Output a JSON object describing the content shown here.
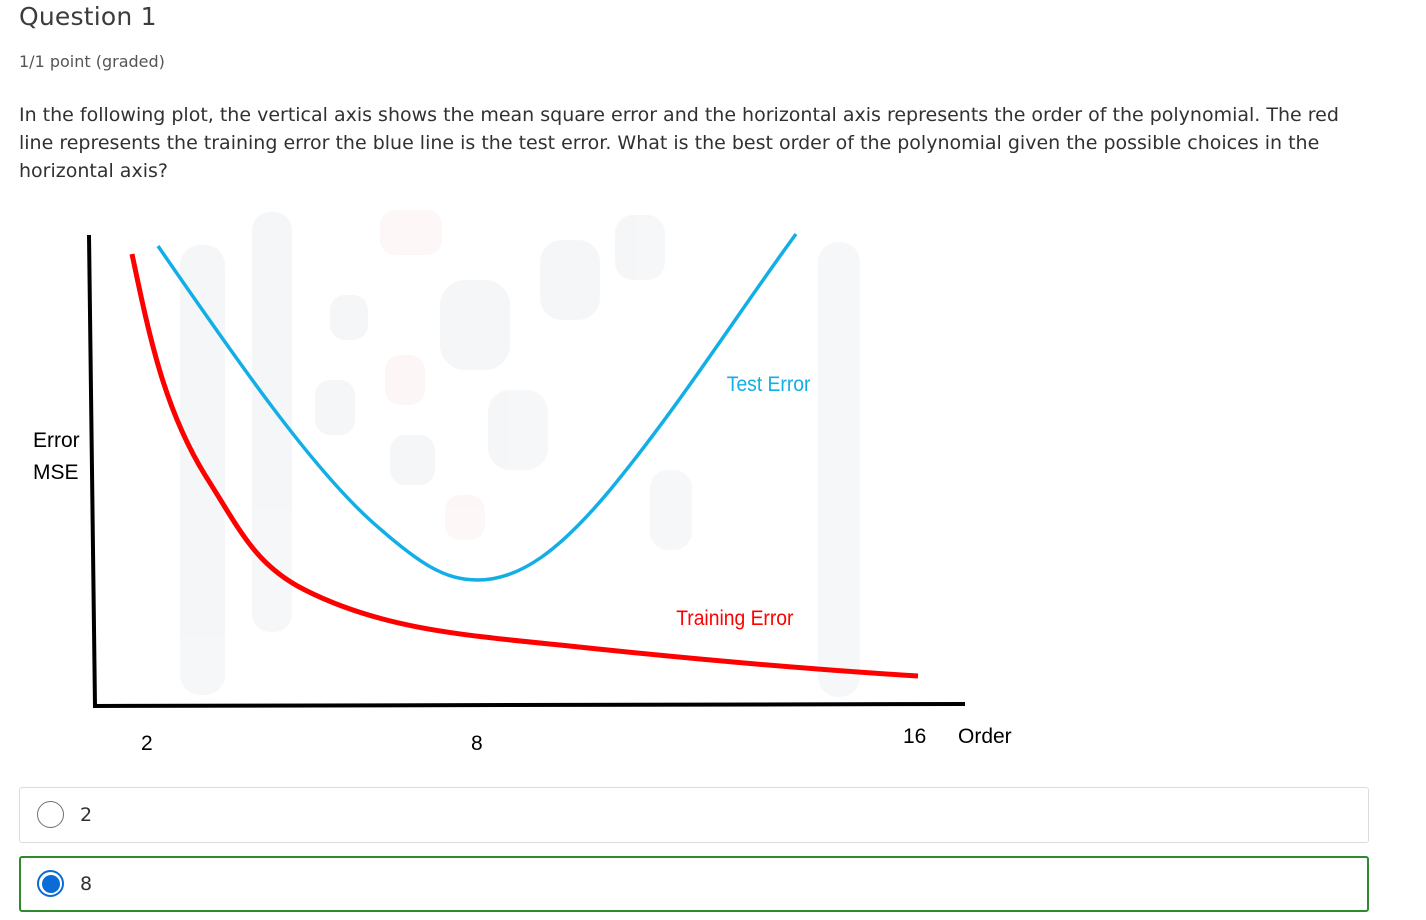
{
  "question": {
    "title": "Question 1",
    "points": "1/1 point (graded)",
    "text": "In the following plot, the vertical axis shows the mean square error and the horizontal axis represents the order of the polynomial. The red line represents the training error the blue line is the test error. What is the best order of the polynomial given the possible choices in the horizontal axis?"
  },
  "chart_data": {
    "type": "line",
    "xlabel": "Order",
    "ylabel_lines": [
      "Error",
      "MSE"
    ],
    "x_ticks": [
      "2",
      "8",
      "16"
    ],
    "series": [
      {
        "name": "Test Error",
        "color": "#12aee6",
        "shape": "U-shaped curve with minimum near order 8",
        "values_relative": [
          {
            "x": 1.3,
            "y": 0.98
          },
          {
            "x": 4.0,
            "y": 0.6
          },
          {
            "x": 6.0,
            "y": 0.35
          },
          {
            "x": 8.0,
            "y": 0.27
          },
          {
            "x": 10.0,
            "y": 0.42
          },
          {
            "x": 12.0,
            "y": 0.68
          },
          {
            "x": 13.0,
            "y": 0.99
          }
        ]
      },
      {
        "name": "Training Error",
        "color": "#ff0000",
        "shape": "monotonically decreasing curve",
        "values_relative": [
          {
            "x": 1.0,
            "y": 0.95
          },
          {
            "x": 2.0,
            "y": 0.6
          },
          {
            "x": 4.0,
            "y": 0.28
          },
          {
            "x": 8.0,
            "y": 0.16
          },
          {
            "x": 12.0,
            "y": 0.1
          },
          {
            "x": 16.0,
            "y": 0.06
          }
        ]
      }
    ],
    "colors": {
      "axis": "#000000",
      "test": "#12aee6",
      "train": "#ff0000"
    }
  },
  "choices": [
    {
      "label": "2",
      "selected": false,
      "correct": false
    },
    {
      "label": "8",
      "selected": true,
      "correct": true
    }
  ]
}
